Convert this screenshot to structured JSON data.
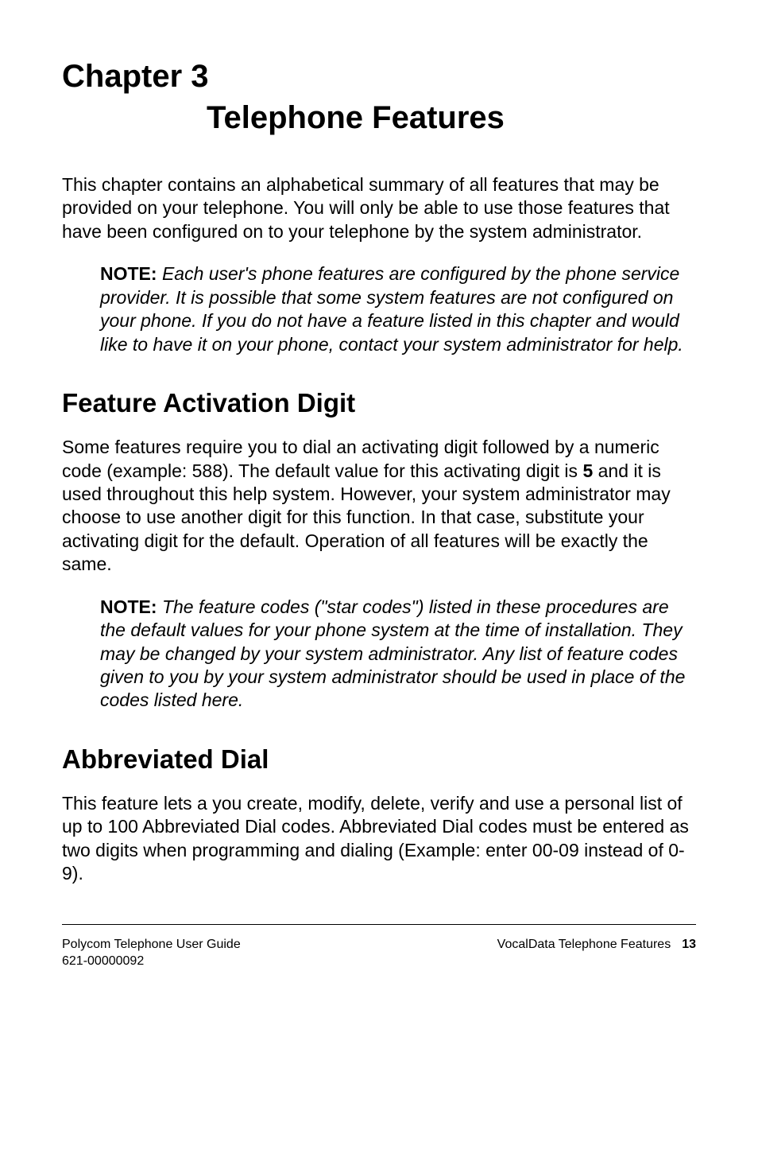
{
  "chapter": {
    "label": "Chapter 3",
    "title": "Telephone Features"
  },
  "intro": {
    "para": "This chapter contains an alphabetical summary of all features that may be provided on your telephone. You will only be able to use those features that have been configured on to your telephone by the system administrator."
  },
  "note1": {
    "label": "NOTE:",
    "body": "Each user's phone features are configured by the phone service provider. It is possible that some system features are not configured on your phone. If you do not have a feature listed in this chapter and would like to have it on your phone, contact your system administrator for help."
  },
  "section1": {
    "heading": "Feature Activation Digit",
    "para_pre": "Some features require you to dial an activating digit followed by a numeric code (example: 588). The default value for this activating digit is ",
    "bold_digit": "5",
    "para_post": " and it is used throughout this help system. However, your system administrator may choose to use another digit for this function. In that case, substitute your activating digit for the default. Operation of all features will be exactly the same."
  },
  "note2": {
    "label": "NOTE:",
    "body": "The feature codes (\"star codes\") listed in these procedures are the default values for your phone system at the time of installation. They may be changed by your system administrator. Any list of feature codes given to you by your system administrator should be used in place of the codes listed here."
  },
  "section2": {
    "heading": "Abbreviated Dial",
    "para": "This feature lets a you create, modify, delete, verify and use a personal list of up to 100 Abbreviated Dial codes. Abbreviated Dial codes must be entered as two digits when programming and dialing (Example: enter 00-09 instead of 0-9)."
  },
  "footer": {
    "left_line1": "Polycom Telephone User Guide",
    "left_line2": "621-00000092",
    "right_text": "VocalData Telephone Features",
    "page_number": "13"
  }
}
